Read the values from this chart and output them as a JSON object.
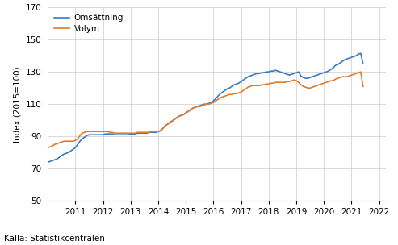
{
  "title": "",
  "ylabel": "Index (2015=100)",
  "source": "Källa: Statistikcentralen",
  "ylim": [
    50,
    170
  ],
  "yticks": [
    50,
    70,
    90,
    110,
    130,
    150,
    170
  ],
  "legend_labels": [
    "Omsättning",
    "Volym"
  ],
  "line_colors": [
    "#3a7abf",
    "#e07b2a"
  ],
  "line_width": 1.2,
  "x_start_year": 2010,
  "x_tick_years": [
    2011,
    2012,
    2013,
    2014,
    2015,
    2016,
    2017,
    2018,
    2019,
    2020,
    2021,
    2022
  ],
  "omsattning": [
    74.0,
    74.5,
    75.0,
    75.5,
    76.0,
    77.0,
    78.0,
    79.0,
    79.5,
    80.0,
    81.0,
    82.0,
    83.0,
    85.0,
    87.0,
    88.5,
    89.5,
    90.5,
    91.0,
    91.0,
    91.0,
    91.0,
    91.0,
    91.0,
    91.0,
    91.5,
    91.5,
    91.5,
    91.5,
    91.0,
    91.0,
    91.0,
    91.0,
    91.0,
    91.0,
    91.0,
    91.5,
    91.5,
    91.5,
    92.0,
    92.0,
    92.0,
    92.0,
    92.0,
    92.5,
    92.5,
    92.5,
    92.5,
    93.0,
    93.5,
    95.0,
    96.5,
    97.5,
    98.5,
    99.5,
    100.5,
    101.5,
    102.5,
    103.0,
    103.5,
    104.5,
    105.5,
    106.5,
    107.5,
    108.0,
    108.5,
    109.0,
    109.5,
    110.0,
    110.0,
    110.5,
    111.0,
    112.0,
    113.5,
    115.0,
    116.5,
    117.5,
    118.5,
    119.5,
    120.0,
    121.0,
    122.0,
    122.5,
    123.0,
    124.0,
    125.0,
    126.0,
    127.0,
    127.5,
    128.0,
    128.5,
    129.0,
    129.0,
    129.5,
    129.5,
    130.0,
    130.0,
    130.5,
    130.5,
    131.0,
    130.5,
    130.0,
    129.5,
    129.0,
    128.5,
    128.0,
    128.5,
    129.0,
    129.5,
    130.0,
    127.5,
    126.5,
    126.0,
    126.0,
    126.5,
    127.0,
    127.5,
    128.0,
    128.5,
    129.0,
    129.5,
    130.0,
    130.5,
    131.5,
    132.5,
    134.0,
    134.5,
    135.5,
    136.5,
    137.5,
    138.0,
    138.5,
    139.0,
    139.5,
    140.0,
    141.0,
    141.5,
    135.0
  ],
  "volym": [
    83.0,
    83.5,
    84.0,
    85.0,
    85.5,
    86.0,
    86.5,
    87.0,
    87.0,
    87.0,
    87.0,
    87.0,
    87.5,
    88.5,
    90.5,
    92.0,
    92.5,
    93.0,
    93.0,
    93.0,
    93.0,
    93.0,
    93.0,
    93.0,
    93.0,
    93.0,
    93.0,
    92.5,
    92.5,
    92.0,
    92.0,
    92.0,
    92.0,
    92.0,
    92.0,
    92.0,
    92.0,
    92.0,
    92.0,
    92.5,
    92.5,
    92.5,
    92.5,
    92.5,
    92.5,
    93.0,
    93.0,
    93.0,
    93.0,
    93.5,
    95.0,
    96.5,
    97.5,
    98.5,
    99.5,
    100.5,
    101.5,
    102.5,
    103.0,
    103.5,
    104.5,
    105.5,
    106.5,
    107.5,
    108.0,
    108.5,
    108.5,
    109.0,
    109.5,
    110.0,
    110.0,
    110.5,
    111.0,
    112.0,
    113.0,
    114.0,
    114.5,
    115.0,
    115.5,
    116.0,
    116.0,
    116.5,
    116.5,
    117.0,
    117.5,
    118.5,
    119.5,
    120.5,
    121.0,
    121.5,
    121.5,
    121.5,
    121.5,
    122.0,
    122.0,
    122.5,
    122.5,
    123.0,
    123.0,
    123.5,
    123.5,
    123.5,
    123.5,
    123.5,
    124.0,
    124.0,
    124.5,
    125.0,
    124.5,
    123.5,
    122.0,
    121.0,
    120.5,
    120.0,
    120.0,
    120.5,
    121.0,
    121.5,
    122.0,
    122.5,
    123.0,
    123.5,
    124.0,
    124.5,
    124.5,
    125.5,
    126.0,
    126.5,
    127.0,
    127.0,
    127.0,
    127.5,
    128.0,
    128.5,
    129.0,
    129.5,
    130.0,
    121.0
  ],
  "background_color": "#ffffff",
  "grid_color": "#cccccc",
  "tick_fontsize": 7.5,
  "label_fontsize": 7.5,
  "legend_fontsize": 7.5,
  "source_fontsize": 7.5
}
